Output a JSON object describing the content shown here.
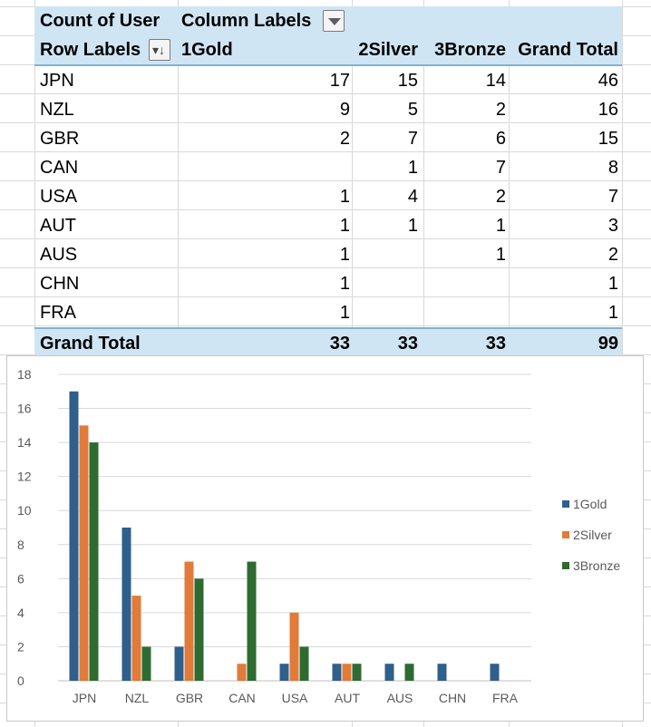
{
  "pivot": {
    "value_field": "Count of User",
    "column_labels": "Column Labels",
    "row_labels": "Row Labels",
    "columns": [
      "1Gold",
      "2Silver",
      "3Bronze",
      "Grand Total"
    ],
    "rows": [
      {
        "label": "JPN",
        "gold": "17",
        "silver": "15",
        "bronze": "14",
        "total": "46"
      },
      {
        "label": "NZL",
        "gold": "9",
        "silver": "5",
        "bronze": "2",
        "total": "16"
      },
      {
        "label": "GBR",
        "gold": "2",
        "silver": "7",
        "bronze": "6",
        "total": "15"
      },
      {
        "label": "CAN",
        "gold": "",
        "silver": "1",
        "bronze": "7",
        "total": "8"
      },
      {
        "label": "USA",
        "gold": "1",
        "silver": "4",
        "bronze": "2",
        "total": "7"
      },
      {
        "label": "AUT",
        "gold": "1",
        "silver": "1",
        "bronze": "1",
        "total": "3"
      },
      {
        "label": "AUS",
        "gold": "1",
        "silver": "",
        "bronze": "1",
        "total": "2"
      },
      {
        "label": "CHN",
        "gold": "1",
        "silver": "",
        "bronze": "",
        "total": "1"
      },
      {
        "label": "FRA",
        "gold": "1",
        "silver": "",
        "bronze": "",
        "total": "1"
      }
    ],
    "grand_total": {
      "label": "Grand Total",
      "gold": "33",
      "silver": "33",
      "bronze": "33",
      "total": "99"
    }
  },
  "colors": {
    "gold": "#2f5f8a",
    "silver": "#e07b39",
    "bronze": "#2e6b30",
    "header_fill": "#cfe5f3"
  },
  "chart_data": {
    "type": "bar",
    "categories": [
      "JPN",
      "NZL",
      "GBR",
      "CAN",
      "USA",
      "AUT",
      "AUS",
      "CHN",
      "FRA"
    ],
    "series": [
      {
        "name": "1Gold",
        "values": [
          17,
          9,
          2,
          0,
          1,
          1,
          1,
          1,
          1
        ]
      },
      {
        "name": "2Silver",
        "values": [
          15,
          5,
          7,
          1,
          4,
          1,
          0,
          0,
          0
        ]
      },
      {
        "name": "3Bronze",
        "values": [
          14,
          2,
          6,
          7,
          2,
          1,
          1,
          0,
          0
        ]
      }
    ],
    "ylim": [
      0,
      18
    ],
    "yticks": [
      "0",
      "2",
      "4",
      "6",
      "8",
      "10",
      "12",
      "14",
      "16",
      "18"
    ],
    "grid": true,
    "legend": "right"
  }
}
